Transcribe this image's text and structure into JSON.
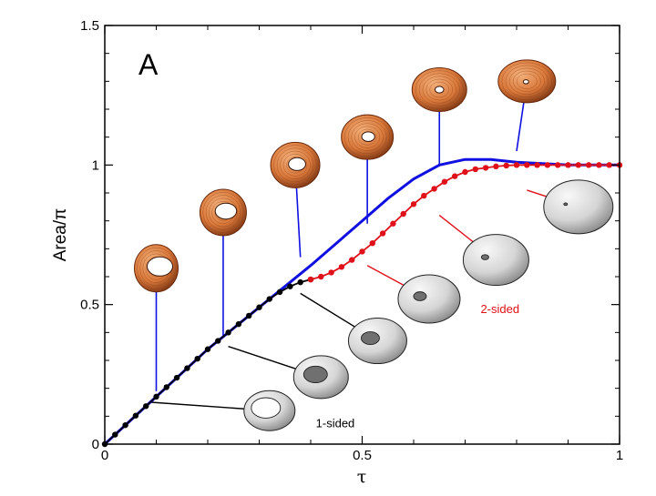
{
  "chart_data": {
    "type": "line",
    "panel_label": "A",
    "xlabel": "τ",
    "ylabel": "Area/π",
    "xlim": [
      0,
      1
    ],
    "ylim": [
      0,
      1.5
    ],
    "x_ticks": [
      0,
      0.5,
      1
    ],
    "x_tick_labels": [
      "0",
      "0.5",
      "1"
    ],
    "y_ticks": [
      0,
      0.5,
      1,
      1.5
    ],
    "y_tick_labels": [
      "0",
      "0.5",
      "1",
      "1.5"
    ],
    "grid": false,
    "colors": {
      "blue_curve": "#1010e0",
      "one_sided": "#000000",
      "two_sided": "#e0101a",
      "orange_surface": "#d9783a",
      "gray_surface": "#c8c8c8"
    },
    "series": [
      {
        "name": "blue curve",
        "style": "line",
        "x": [
          0,
          0.05,
          0.1,
          0.15,
          0.2,
          0.25,
          0.3,
          0.35,
          0.4,
          0.45,
          0.5,
          0.55,
          0.6,
          0.65,
          0.7,
          0.75,
          0.8,
          0.85,
          0.9,
          0.95,
          1.0
        ],
        "y": [
          0,
          0.085,
          0.17,
          0.255,
          0.34,
          0.415,
          0.49,
          0.565,
          0.64,
          0.72,
          0.8,
          0.88,
          0.95,
          1.0,
          1.02,
          1.02,
          1.01,
          1.005,
          1.0,
          1.0,
          1.0
        ]
      },
      {
        "name": "1-sided",
        "style": "line+markers",
        "x": [
          0,
          0.02,
          0.04,
          0.06,
          0.08,
          0.1,
          0.12,
          0.14,
          0.16,
          0.18,
          0.2,
          0.22,
          0.24,
          0.26,
          0.28,
          0.3,
          0.32,
          0.34,
          0.36,
          0.38,
          0.4
        ],
        "y": [
          0,
          0.034,
          0.068,
          0.102,
          0.136,
          0.17,
          0.204,
          0.238,
          0.272,
          0.306,
          0.34,
          0.37,
          0.4,
          0.43,
          0.46,
          0.49,
          0.52,
          0.545,
          0.565,
          0.58,
          0.59
        ]
      },
      {
        "name": "2-sided",
        "style": "line+markers",
        "x": [
          0.4,
          0.42,
          0.44,
          0.46,
          0.48,
          0.5,
          0.52,
          0.54,
          0.56,
          0.58,
          0.6,
          0.62,
          0.64,
          0.66,
          0.68,
          0.7,
          0.72,
          0.74,
          0.76,
          0.78,
          0.8,
          0.82,
          0.84,
          0.86,
          0.88,
          0.9,
          0.92,
          0.94,
          0.96,
          0.98,
          1.0
        ],
        "y": [
          0.59,
          0.6,
          0.615,
          0.635,
          0.66,
          0.69,
          0.72,
          0.755,
          0.79,
          0.825,
          0.86,
          0.89,
          0.915,
          0.94,
          0.96,
          0.975,
          0.985,
          0.99,
          0.995,
          0.998,
          1.0,
          1.0,
          1.0,
          1.0,
          1.0,
          1.0,
          1.0,
          1.0,
          1.0,
          1.0,
          1.0
        ]
      }
    ],
    "annotations": [
      {
        "text": "1-sided",
        "color": "#000000",
        "x": 0.41,
        "y": 0.06
      },
      {
        "text": "2-sided",
        "color": "#e0101a",
        "x": 0.73,
        "y": 0.47
      }
    ],
    "insets_top": [
      {
        "name": "orange-surface-1",
        "at": [
          0.1,
          0.19
        ],
        "img": [
          0.1,
          0.63
        ]
      },
      {
        "name": "orange-surface-2",
        "at": [
          0.23,
          0.38
        ],
        "img": [
          0.23,
          0.83
        ]
      },
      {
        "name": "orange-surface-3",
        "at": [
          0.38,
          0.67
        ],
        "img": [
          0.37,
          1.0
        ]
      },
      {
        "name": "orange-surface-4",
        "at": [
          0.51,
          0.79
        ],
        "img": [
          0.51,
          1.1
        ]
      },
      {
        "name": "orange-surface-5",
        "at": [
          0.65,
          1.0
        ],
        "img": [
          0.65,
          1.27
        ]
      },
      {
        "name": "orange-surface-6",
        "at": [
          0.8,
          1.05
        ],
        "img": [
          0.82,
          1.3
        ]
      }
    ],
    "insets_bottom": [
      {
        "name": "gray-surface-1",
        "at": [
          0.09,
          0.15
        ],
        "img": [
          0.32,
          0.12
        ]
      },
      {
        "name": "gray-surface-2",
        "at": [
          0.24,
          0.35
        ],
        "img": [
          0.42,
          0.24
        ]
      },
      {
        "name": "gray-surface-3",
        "at": [
          0.38,
          0.54
        ],
        "img": [
          0.53,
          0.37
        ]
      },
      {
        "name": "gray-surface-4",
        "at": [
          0.51,
          0.64
        ],
        "img": [
          0.63,
          0.52
        ]
      },
      {
        "name": "gray-surface-5",
        "at": [
          0.65,
          0.82
        ],
        "img": [
          0.76,
          0.66
        ]
      },
      {
        "name": "gray-surface-6",
        "at": [
          0.82,
          0.91
        ],
        "img": [
          0.92,
          0.85
        ]
      }
    ]
  }
}
